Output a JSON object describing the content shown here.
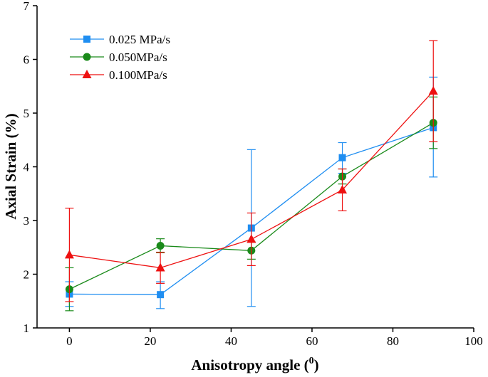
{
  "chart_data": {
    "type": "line",
    "title": "",
    "xlabel": "Anisotropy angle (",
    "xlabel_sup": "0",
    "xlabel_close": ")",
    "ylabel": "Axial Strain (%)",
    "xlim": [
      -8,
      100
    ],
    "ylim": [
      1,
      7
    ],
    "x_ticks": [
      0,
      20,
      40,
      60,
      80,
      100
    ],
    "y_ticks": [
      1,
      2,
      3,
      4,
      5,
      6,
      7
    ],
    "grid": false,
    "legend_position": "top-left",
    "series": [
      {
        "name": "0.025 MPa/s",
        "color": "#1f8ef1",
        "marker": "square",
        "x": [
          0,
          22.5,
          45,
          67.5,
          90
        ],
        "y": [
          1.63,
          1.62,
          2.86,
          4.17,
          4.73
        ],
        "err_low": [
          1.4,
          1.36,
          1.4,
          3.88,
          3.81
        ],
        "err_high": [
          1.86,
          1.86,
          4.32,
          4.45,
          5.67
        ]
      },
      {
        "name": "0.050MPa/s",
        "color": "#1a8a1a",
        "marker": "circle",
        "x": [
          0,
          22.5,
          45,
          67.5,
          90
        ],
        "y": [
          1.72,
          2.53,
          2.44,
          3.82,
          4.82
        ],
        "err_low": [
          1.32,
          2.4,
          2.28,
          3.68,
          4.34
        ],
        "err_high": [
          2.12,
          2.66,
          2.6,
          3.96,
          5.3
        ]
      },
      {
        "name": "0.100MPa/s",
        "color": "#ee1111",
        "marker": "triangle",
        "x": [
          0,
          22.5,
          45,
          67.5,
          90
        ],
        "y": [
          2.36,
          2.12,
          2.65,
          3.57,
          5.41
        ],
        "err_low": [
          1.49,
          1.83,
          2.16,
          3.18,
          4.47
        ],
        "err_high": [
          3.23,
          2.41,
          3.14,
          3.96,
          6.35
        ]
      }
    ]
  }
}
